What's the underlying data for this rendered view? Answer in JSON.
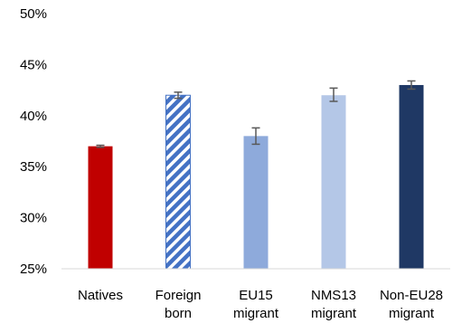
{
  "chart_data": {
    "type": "bar",
    "title": "",
    "xlabel": "",
    "ylabel": "",
    "ylim": [
      25,
      50
    ],
    "yticks": [
      25,
      30,
      35,
      40,
      45,
      50
    ],
    "ytick_labels": [
      "25%",
      "30%",
      "35%",
      "40%",
      "45%",
      "50%"
    ],
    "grid": false,
    "legend": "none",
    "categories": [
      {
        "lines": [
          "Natives"
        ]
      },
      {
        "lines": [
          "Foreign",
          "born"
        ]
      },
      {
        "lines": [
          "EU15",
          "migrant"
        ]
      },
      {
        "lines": [
          "NMS13",
          "migrant"
        ]
      },
      {
        "lines": [
          "Non-EU28",
          "migrant"
        ]
      }
    ],
    "values": [
      37.0,
      42.0,
      38.0,
      42.0,
      43.0
    ],
    "error_bars": [
      [
        36.9,
        37.1
      ],
      [
        41.7,
        42.3
      ],
      [
        37.2,
        38.8
      ],
      [
        41.4,
        42.7
      ],
      [
        42.6,
        43.4
      ]
    ],
    "colors": [
      "#c00000",
      "#4472c4",
      "#8eaadb",
      "#b4c7e7",
      "#1f3864"
    ],
    "patterns": [
      "solid",
      "diagonal-stripes",
      "solid",
      "solid",
      "solid"
    ],
    "error_bar_color": "#595959",
    "axis_color": "#d9d9d9"
  }
}
